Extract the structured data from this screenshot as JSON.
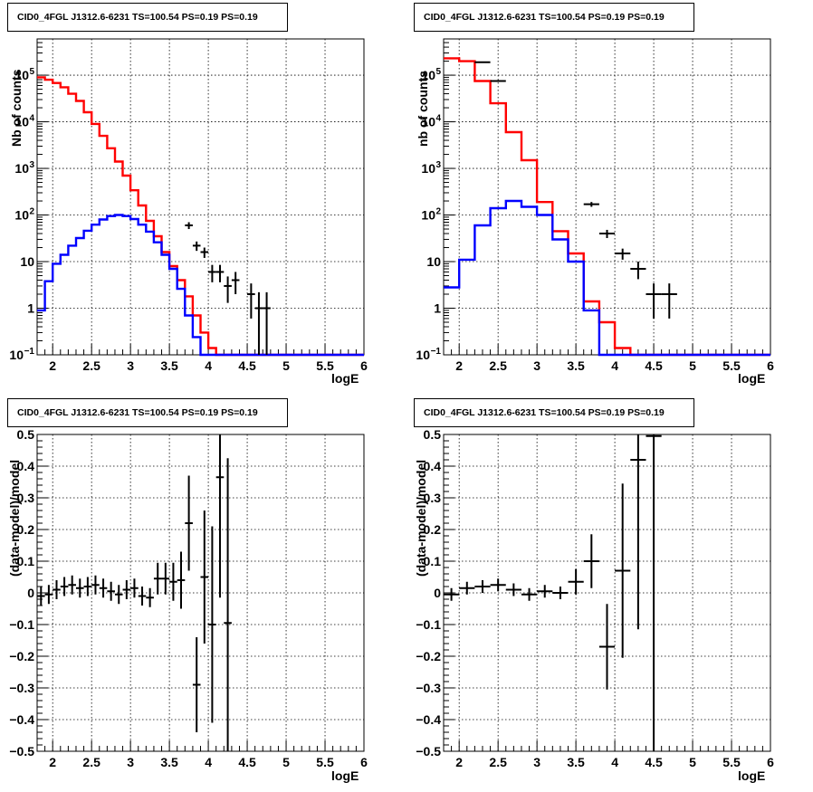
{
  "chart_data": [
    {
      "type": "line",
      "title": "CID0_4FGL J1312.6-6231 TS=100.54 PS=0.19 PS=0.19",
      "xlabel": "logE",
      "ylabel": "Nb of counts",
      "xlim": [
        1.8,
        6.0
      ],
      "ylim": [
        0.1,
        600000
      ],
      "yscale": "log",
      "grid": true,
      "xticks": [
        "2",
        "2.5",
        "3",
        "3.5",
        "4",
        "4.5",
        "5",
        "5.5",
        "6"
      ],
      "yticks": [
        {
          "v": 0.1,
          "label": "10",
          "sup": "−1"
        },
        {
          "v": 1,
          "label": "1",
          "sup": ""
        },
        {
          "v": 10,
          "label": "10",
          "sup": ""
        },
        {
          "v": 100,
          "label": "10",
          "sup": "2"
        },
        {
          "v": 1000,
          "label": "10",
          "sup": "3"
        },
        {
          "v": 10000,
          "label": "10",
          "sup": "4"
        },
        {
          "v": 100000,
          "label": "10",
          "sup": "5"
        }
      ],
      "bin_edges_start": 1.8,
      "bin_width": 0.1,
      "series": [
        {
          "color": "#ff0000",
          "style": "hist",
          "values": [
            90000,
            80000,
            68000,
            55000,
            40000,
            28000,
            16000,
            9000,
            5000,
            2700,
            1400,
            700,
            340,
            160,
            75,
            35,
            16,
            8,
            4,
            1.8,
            0.7,
            0.3,
            0.14,
            0.1,
            0.1,
            0.1,
            0.1,
            0.1,
            0.1,
            0.1,
            0.1,
            0.1,
            0.1,
            0.1,
            0.1,
            0.1,
            0.1,
            0.1,
            0.1,
            0.1,
            0.1,
            0.1
          ]
        },
        {
          "color": "#0000ff",
          "style": "hist",
          "values": [
            0.9,
            3.8,
            9,
            14,
            22,
            32,
            46,
            62,
            80,
            95,
            100,
            95,
            82,
            62,
            44,
            26,
            14,
            7,
            2.6,
            0.7,
            0.24,
            0.1,
            0.1,
            0.1,
            0.1,
            0.1,
            0.1,
            0.1,
            0.1,
            0.1,
            0.1,
            0.1,
            0.1,
            0.1,
            0.1,
            0.1,
            0.1,
            0.1,
            0.1,
            0.1,
            0.1,
            0.1
          ]
        },
        {
          "color": "#000000",
          "style": "points",
          "halfwidth": 0.05,
          "points": [
            {
              "x": 3.75,
              "y": 60,
              "lo": 50,
              "hi": 70
            },
            {
              "x": 3.85,
              "y": 22,
              "lo": 17,
              "hi": 27
            },
            {
              "x": 3.95,
              "y": 16,
              "lo": 12,
              "hi": 20
            },
            {
              "x": 4.05,
              "y": 6,
              "lo": 3.6,
              "hi": 8.5
            },
            {
              "x": 4.15,
              "y": 6,
              "lo": 3.6,
              "hi": 8.5
            },
            {
              "x": 4.25,
              "y": 3,
              "lo": 1.3,
              "hi": 4.8
            },
            {
              "x": 4.35,
              "y": 4,
              "lo": 2.0,
              "hi": 6.0
            },
            {
              "x": 4.55,
              "y": 2,
              "lo": 0.6,
              "hi": 3.4
            },
            {
              "x": 4.65,
              "y": 1,
              "lo": 0.1,
              "hi": 2.2
            },
            {
              "x": 4.75,
              "y": 1,
              "lo": 0.1,
              "hi": 2.2
            }
          ]
        }
      ]
    },
    {
      "type": "line",
      "title": "CID0_4FGL J1312.6-6231 TS=100.54 PS=0.19 PS=0.19",
      "xlabel": "logE",
      "ylabel": "nb of counts",
      "xlim": [
        1.8,
        6.0
      ],
      "ylim": [
        0.1,
        600000
      ],
      "yscale": "log",
      "grid": true,
      "xticks": [
        "2",
        "2.5",
        "3",
        "3.5",
        "4",
        "4.5",
        "5",
        "5.5",
        "6"
      ],
      "yticks": [
        {
          "v": 0.1,
          "label": "10",
          "sup": "−1"
        },
        {
          "v": 1,
          "label": "1",
          "sup": ""
        },
        {
          "v": 10,
          "label": "10",
          "sup": ""
        },
        {
          "v": 100,
          "label": "10",
          "sup": "2"
        },
        {
          "v": 1000,
          "label": "10",
          "sup": "3"
        },
        {
          "v": 10000,
          "label": "10",
          "sup": "4"
        },
        {
          "v": 100000,
          "label": "10",
          "sup": "5"
        }
      ],
      "bin_edges_start": 1.8,
      "bin_width": 0.2,
      "series": [
        {
          "color": "#ff0000",
          "style": "hist",
          "values": [
            230000,
            200000,
            75000,
            25000,
            6000,
            1500,
            190,
            45,
            15,
            1.4,
            0.5,
            0.14,
            0.1,
            0.1,
            0.1,
            0.1,
            0.1,
            0.1,
            0.1,
            0.1,
            0.1
          ]
        },
        {
          "color": "#0000ff",
          "style": "hist",
          "values": [
            2.8,
            11,
            60,
            140,
            200,
            150,
            100,
            30,
            10,
            0.9,
            0.1,
            0.1,
            0.1,
            0.1,
            0.1,
            0.1,
            0.1,
            0.1,
            0.1,
            0.1,
            0.1
          ]
        },
        {
          "color": "#000000",
          "style": "points",
          "halfwidth": 0.1,
          "points": [
            {
              "x": 2.5,
              "y": 75000,
              "lo": 73000,
              "hi": 77000
            },
            {
              "x": 2.3,
              "y": 190000,
              "lo": 186000,
              "hi": 194000
            },
            {
              "x": 3.7,
              "y": 170,
              "lo": 150,
              "hi": 190
            },
            {
              "x": 3.9,
              "y": 40,
              "lo": 32,
              "hi": 48
            },
            {
              "x": 4.1,
              "y": 15,
              "lo": 11,
              "hi": 19
            },
            {
              "x": 4.3,
              "y": 7,
              "lo": 4.2,
              "hi": 10
            },
            {
              "x": 4.5,
              "y": 2,
              "lo": 0.6,
              "hi": 3.4
            },
            {
              "x": 4.7,
              "y": 2,
              "lo": 0.6,
              "hi": 3.4
            }
          ]
        }
      ]
    },
    {
      "type": "scatter",
      "title": "CID0_4FGL J1312.6-6231 TS=100.54 PS=0.19 PS=0.19",
      "xlabel": "logE",
      "ylabel": "(data-model)/model",
      "xlim": [
        1.8,
        6.0
      ],
      "ylim": [
        -0.5,
        0.5
      ],
      "yscale": "linear",
      "grid": true,
      "xticks": [
        "2",
        "2.5",
        "3",
        "3.5",
        "4",
        "4.5",
        "5",
        "5.5",
        "6"
      ],
      "yticks": [
        {
          "v": -0.5,
          "label": "−0.5"
        },
        {
          "v": -0.4,
          "label": "−0.4"
        },
        {
          "v": -0.3,
          "label": "−0.3"
        },
        {
          "v": -0.2,
          "label": "−0.2"
        },
        {
          "v": -0.1,
          "label": "−0.1"
        },
        {
          "v": 0,
          "label": "0"
        },
        {
          "v": 0.1,
          "label": "0.1"
        },
        {
          "v": 0.2,
          "label": "0.2"
        },
        {
          "v": 0.3,
          "label": "0.3"
        },
        {
          "v": 0.4,
          "label": "0.4"
        },
        {
          "v": 0.5,
          "label": "0.5"
        }
      ],
      "series": [
        {
          "color": "#000000",
          "style": "points",
          "halfwidth": 0.05,
          "points": [
            {
              "x": 1.85,
              "y": -0.01,
              "e": 0.03
            },
            {
              "x": 1.95,
              "y": -0.005,
              "e": 0.03
            },
            {
              "x": 2.05,
              "y": 0.01,
              "e": 0.03
            },
            {
              "x": 2.15,
              "y": 0.02,
              "e": 0.03
            },
            {
              "x": 2.25,
              "y": 0.025,
              "e": 0.03
            },
            {
              "x": 2.35,
              "y": 0.015,
              "e": 0.03
            },
            {
              "x": 2.45,
              "y": 0.02,
              "e": 0.03
            },
            {
              "x": 2.55,
              "y": 0.025,
              "e": 0.03
            },
            {
              "x": 2.65,
              "y": 0.015,
              "e": 0.03
            },
            {
              "x": 2.75,
              "y": 0.005,
              "e": 0.03
            },
            {
              "x": 2.85,
              "y": -0.005,
              "e": 0.03
            },
            {
              "x": 2.95,
              "y": 0.01,
              "e": 0.03
            },
            {
              "x": 3.05,
              "y": 0.015,
              "e": 0.03
            },
            {
              "x": 3.15,
              "y": -0.01,
              "e": 0.03
            },
            {
              "x": 3.25,
              "y": -0.015,
              "e": 0.03
            },
            {
              "x": 3.35,
              "y": 0.045,
              "e": 0.05
            },
            {
              "x": 3.45,
              "y": 0.045,
              "e": 0.05
            },
            {
              "x": 3.55,
              "y": 0.035,
              "e": 0.06
            },
            {
              "x": 3.65,
              "y": 0.04,
              "e": 0.09
            },
            {
              "x": 3.75,
              "y": 0.22,
              "e": 0.15
            },
            {
              "x": 3.85,
              "y": -0.29,
              "e": 0.15
            },
            {
              "x": 3.95,
              "y": 0.05,
              "e": 0.21
            },
            {
              "x": 4.05,
              "y": -0.1,
              "e": 0.31
            },
            {
              "x": 4.15,
              "y": 0.365,
              "e": 0.38
            },
            {
              "x": 4.25,
              "y": -0.095,
              "e": 0.52
            }
          ]
        }
      ]
    },
    {
      "type": "scatter",
      "title": "CID0_4FGL J1312.6-6231 TS=100.54 PS=0.19 PS=0.19",
      "xlabel": "logE",
      "ylabel": "(data-model)/model",
      "xlim": [
        1.8,
        6.0
      ],
      "ylim": [
        -0.5,
        0.5
      ],
      "yscale": "linear",
      "grid": true,
      "xticks": [
        "2",
        "2.5",
        "3",
        "3.5",
        "4",
        "4.5",
        "5",
        "5.5",
        "6"
      ],
      "yticks": [
        {
          "v": -0.5,
          "label": "−0.5"
        },
        {
          "v": -0.4,
          "label": "−0.4"
        },
        {
          "v": -0.3,
          "label": "−0.3"
        },
        {
          "v": -0.2,
          "label": "−0.2"
        },
        {
          "v": -0.1,
          "label": "−0.1"
        },
        {
          "v": 0,
          "label": "0"
        },
        {
          "v": 0.1,
          "label": "0.1"
        },
        {
          "v": 0.2,
          "label": "0.2"
        },
        {
          "v": 0.3,
          "label": "0.3"
        },
        {
          "v": 0.4,
          "label": "0.4"
        },
        {
          "v": 0.5,
          "label": "0.5"
        }
      ],
      "series": [
        {
          "color": "#000000",
          "style": "points",
          "halfwidth": 0.1,
          "points": [
            {
              "x": 1.9,
              "y": -0.005,
              "e": 0.02
            },
            {
              "x": 2.1,
              "y": 0.015,
              "e": 0.02
            },
            {
              "x": 2.3,
              "y": 0.02,
              "e": 0.02
            },
            {
              "x": 2.5,
              "y": 0.025,
              "e": 0.02
            },
            {
              "x": 2.7,
              "y": 0.01,
              "e": 0.02
            },
            {
              "x": 2.9,
              "y": -0.005,
              "e": 0.02
            },
            {
              "x": 3.1,
              "y": 0.005,
              "e": 0.02
            },
            {
              "x": 3.3,
              "y": 0.0,
              "e": 0.02
            },
            {
              "x": 3.5,
              "y": 0.035,
              "e": 0.04
            },
            {
              "x": 3.7,
              "y": 0.1,
              "e": 0.085
            },
            {
              "x": 3.9,
              "y": -0.17,
              "e": 0.135
            },
            {
              "x": 4.1,
              "y": 0.07,
              "e": 0.275
            },
            {
              "x": 4.3,
              "y": 0.42,
              "e": 0.535
            },
            {
              "x": 4.5,
              "y": 0.495,
              "e": 1.0
            }
          ]
        }
      ]
    }
  ]
}
